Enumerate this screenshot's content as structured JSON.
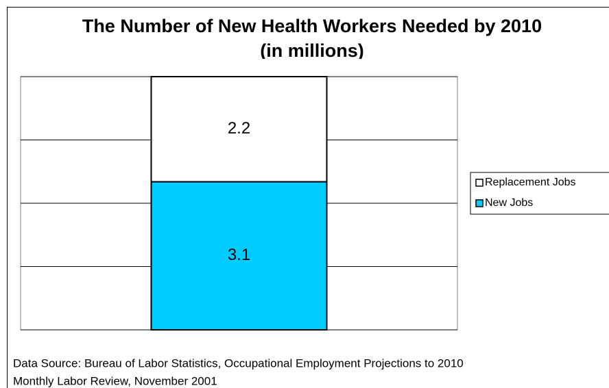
{
  "chart_data": {
    "type": "stacked_bar",
    "title": [
      "The Number of New Health Workers Needed by 2010",
      "(in millions)"
    ],
    "categories": [
      null
    ],
    "series": [
      {
        "name": "New Jobs",
        "color": "#00ccff",
        "values": [
          3.1
        ]
      },
      {
        "name": "Replacement Jobs",
        "color": "#ffffff",
        "values": [
          2.2
        ]
      }
    ],
    "ylim": [
      0,
      5.3
    ],
    "yticks": [
      0,
      1.325,
      2.65,
      3.975,
      5.3
    ],
    "grid": true,
    "legend": "right",
    "footnote": [
      "Data Source:  Bureau of Labor Statistics, Occupational Employment Projections to 2010",
      "Monthly Labor Review, November 2001"
    ]
  }
}
